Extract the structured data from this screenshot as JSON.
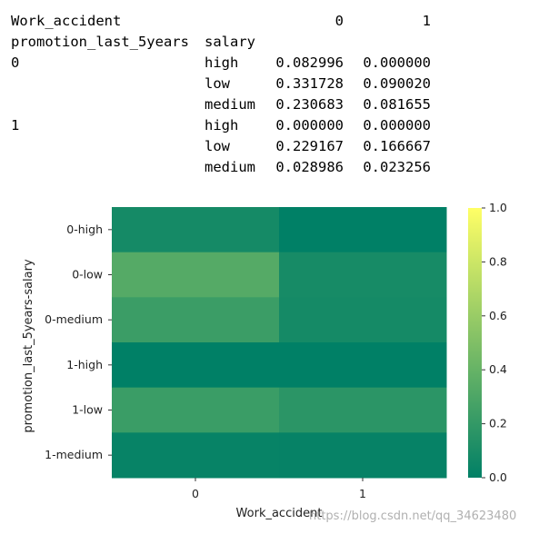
{
  "table": {
    "col_header_label": "Work_accident",
    "col_values": [
      "0",
      "1"
    ],
    "index_names": [
      "promotion_last_5years",
      "salary"
    ],
    "rows": [
      {
        "promo": "0",
        "salary": "high",
        "v0": "0.082996",
        "v1": "0.000000"
      },
      {
        "promo": "",
        "salary": "low",
        "v0": "0.331728",
        "v1": "0.090020"
      },
      {
        "promo": "",
        "salary": "medium",
        "v0": "0.230683",
        "v1": "0.081655"
      },
      {
        "promo": "1",
        "salary": "high",
        "v0": "0.000000",
        "v1": "0.000000"
      },
      {
        "promo": "",
        "salary": "low",
        "v0": "0.229167",
        "v1": "0.166667"
      },
      {
        "promo": "",
        "salary": "medium",
        "v0": "0.028986",
        "v1": "0.023256"
      }
    ]
  },
  "chart_data": {
    "type": "heatmap",
    "colormap": "summer",
    "xlabel": "Work_accident",
    "ylabel": "promotion_last_5years-salary",
    "x": [
      "0",
      "1"
    ],
    "y": [
      "0-high",
      "0-low",
      "0-medium",
      "1-high",
      "1-low",
      "1-medium"
    ],
    "values": [
      [
        0.082996,
        0.0
      ],
      [
        0.331728,
        0.09002
      ],
      [
        0.230683,
        0.081655
      ],
      [
        0.0,
        0.0
      ],
      [
        0.229167,
        0.166667
      ],
      [
        0.028986,
        0.023256
      ]
    ],
    "vmin": 0.0,
    "vmax": 1.0,
    "colorbar_ticks": [
      "0.0",
      "0.2",
      "0.4",
      "0.6",
      "0.8",
      "1.0"
    ],
    "colorbar_tick_values": [
      0.0,
      0.2,
      0.4,
      0.6,
      0.8,
      1.0
    ]
  },
  "watermark": "https://blog.csdn.net/qq_34623480"
}
